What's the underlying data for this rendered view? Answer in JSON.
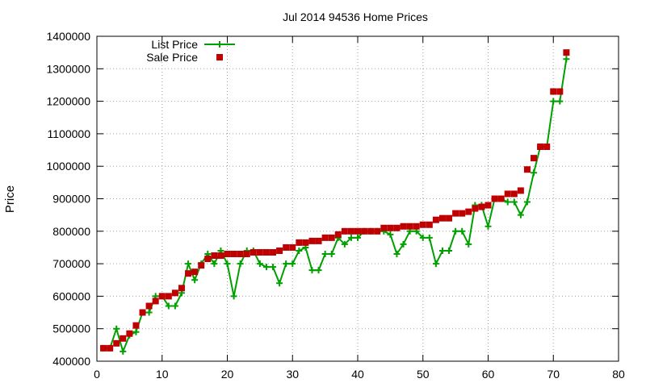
{
  "chart_data": {
    "type": "line",
    "title": "Jul 2014 94536 Home Prices",
    "xlabel": "",
    "ylabel": "Price",
    "xlim": [
      0,
      80
    ],
    "ylim": [
      400000,
      1400000
    ],
    "xticks": [
      "0",
      "10",
      "20",
      "30",
      "40",
      "50",
      "60",
      "70",
      "80"
    ],
    "yticks": [
      "400000",
      "500000",
      "600000",
      "700000",
      "800000",
      "900000",
      "1000000",
      "1100000",
      "1200000",
      "1300000",
      "1400000"
    ],
    "grid": true,
    "legend_position": "top-left",
    "series": [
      {
        "name": "List Price",
        "style": "line-with-plus-markers",
        "color": "#00a000",
        "x": [
          1,
          2,
          3,
          4,
          5,
          6,
          7,
          8,
          9,
          10,
          11,
          12,
          13,
          14,
          15,
          16,
          17,
          18,
          19,
          20,
          21,
          22,
          23,
          24,
          25,
          26,
          27,
          28,
          29,
          30,
          31,
          32,
          33,
          34,
          35,
          36,
          37,
          38,
          39,
          40,
          41,
          42,
          43,
          44,
          45,
          46,
          47,
          48,
          49,
          50,
          51,
          52,
          53,
          54,
          55,
          56,
          57,
          58,
          59,
          60,
          61,
          62,
          63,
          64,
          65,
          66,
          67,
          68,
          69,
          70,
          71,
          72
        ],
        "y": [
          440000,
          440000,
          500000,
          430000,
          480000,
          490000,
          550000,
          550000,
          600000,
          600000,
          570000,
          570000,
          610000,
          700000,
          650000,
          700000,
          730000,
          700000,
          740000,
          700000,
          600000,
          700000,
          740000,
          740000,
          700000,
          690000,
          690000,
          640000,
          700000,
          700000,
          740000,
          750000,
          680000,
          680000,
          730000,
          730000,
          780000,
          760000,
          780000,
          780000,
          800000,
          800000,
          800000,
          800000,
          790000,
          730000,
          760000,
          800000,
          800000,
          780000,
          780000,
          700000,
          740000,
          740000,
          800000,
          800000,
          760000,
          880000,
          880000,
          815000,
          900000,
          900000,
          890000,
          890000,
          850000,
          890000,
          980000,
          1060000,
          1060000,
          1200000,
          1200000,
          1330000
        ]
      },
      {
        "name": "Sale Price",
        "style": "square-markers",
        "color": "#c00000",
        "x": [
          1,
          2,
          3,
          4,
          5,
          6,
          7,
          8,
          9,
          10,
          11,
          12,
          13,
          14,
          15,
          16,
          17,
          18,
          19,
          20,
          21,
          22,
          23,
          24,
          25,
          26,
          27,
          28,
          29,
          30,
          31,
          32,
          33,
          34,
          35,
          36,
          37,
          38,
          39,
          40,
          41,
          42,
          43,
          44,
          45,
          46,
          47,
          48,
          49,
          50,
          51,
          52,
          53,
          54,
          55,
          56,
          57,
          58,
          59,
          60,
          61,
          62,
          63,
          64,
          65,
          66,
          67,
          68,
          69,
          70,
          71,
          72
        ],
        "y": [
          440000,
          440000,
          455000,
          470000,
          485000,
          510000,
          550000,
          570000,
          585000,
          600000,
          600000,
          610000,
          625000,
          670000,
          675000,
          695000,
          715000,
          725000,
          725000,
          730000,
          730000,
          730000,
          730000,
          735000,
          735000,
          735000,
          735000,
          740000,
          750000,
          750000,
          765000,
          765000,
          770000,
          770000,
          780000,
          780000,
          790000,
          800000,
          800000,
          800000,
          800000,
          800000,
          800000,
          810000,
          810000,
          810000,
          815000,
          815000,
          815000,
          820000,
          820000,
          835000,
          840000,
          840000,
          855000,
          855000,
          860000,
          870000,
          875000,
          880000,
          900000,
          900000,
          915000,
          915000,
          925000,
          990000,
          1025000,
          1060000,
          1060000,
          1230000,
          1230000,
          1350000
        ]
      }
    ]
  }
}
